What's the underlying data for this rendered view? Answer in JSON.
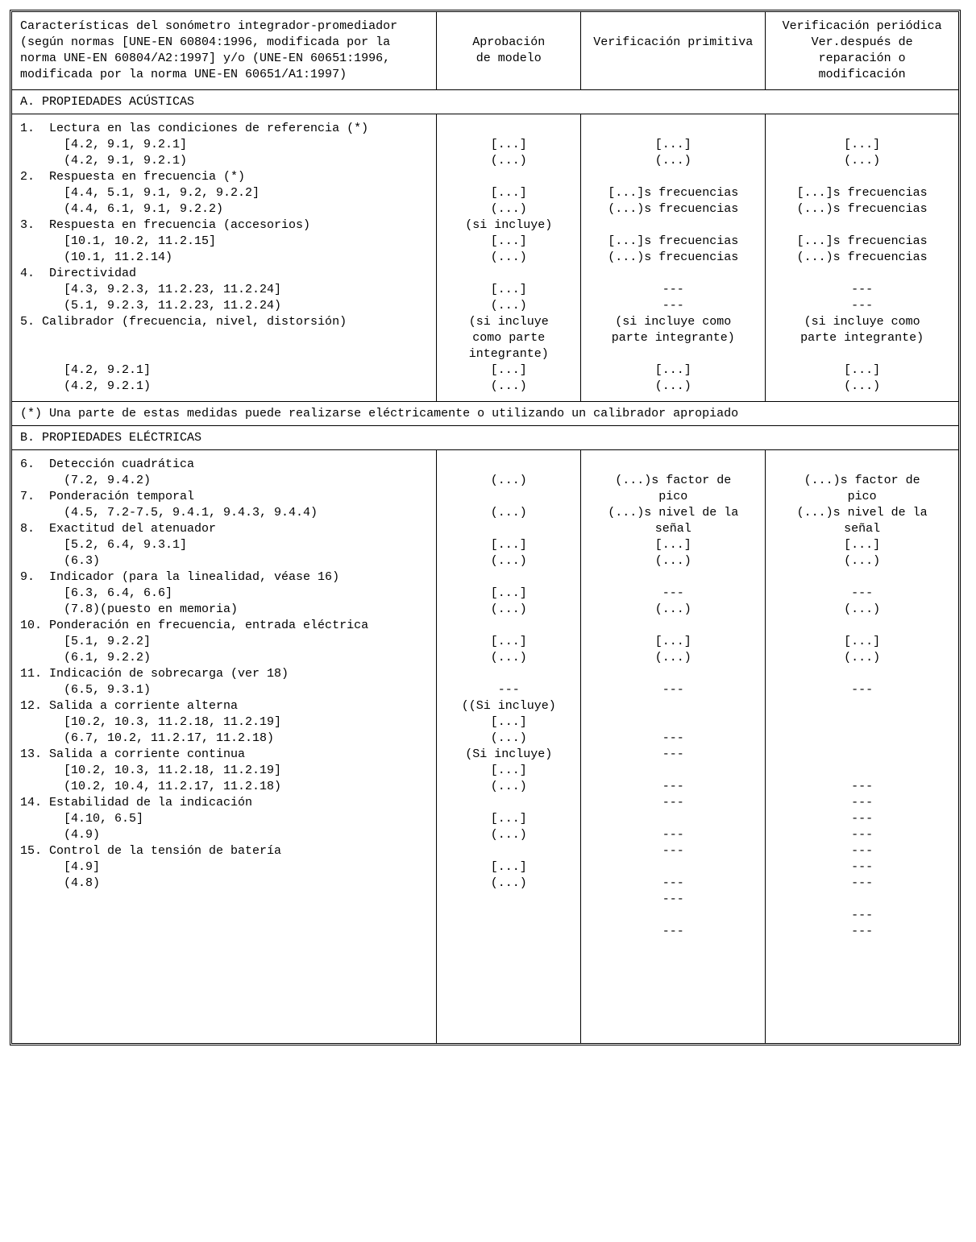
{
  "header": {
    "col1_l1": "Características del sonómetro integrador-promediador",
    "col1_l2": "(según normas [UNE-EN 60804:1996, modificada por la",
    "col1_l3": "norma UNE-EN 60804/A2:1997] y/o (UNE-EN 60651:1996,",
    "col1_l4": "modificada por la norma UNE-EN 60651/A1:1997)",
    "col2_l1": "Aprobación",
    "col2_l2": "de modelo",
    "col3_l1": "Verificación",
    "col3_l2": "primitiva",
    "col4_l1": "Verificación",
    "col4_l2": "periódica",
    "col4_l3": "Ver.después de",
    "col4_l4": "reparación o",
    "col4_l5": "modificación"
  },
  "sectionA_title": "A. PROPIEDADES ACÚSTICAS",
  "note_text": "(*) Una parte de estas medidas puede realizarse eléctricamente o utilizando un calibrador apropiado",
  "sectionB_title": "B. PROPIEDADES ELÉCTRICAS",
  "A": {
    "c1": [
      "1.  Lectura en las condiciones de referencia (*)",
      "      [4.2, 9.1, 9.2.1]",
      "      (4.2, 9.1, 9.2.1)",
      "2.  Respuesta en frecuencia (*)",
      "      [4.4, 5.1, 9.1, 9.2, 9.2.2]",
      "      (4.4, 6.1, 9.1, 9.2.2)",
      "3.  Respuesta en frecuencia (accesorios)",
      "      [10.1, 10.2, 11.2.15]",
      "      (10.1, 11.2.14)",
      "4.  Directividad",
      "      [4.3, 9.2.3, 11.2.23, 11.2.24]",
      "      (5.1, 9.2.3, 11.2.23, 11.2.24)",
      "5. Calibrador (frecuencia, nivel, distorsión)",
      "",
      "",
      "      [4.2, 9.2.1]",
      "      (4.2, 9.2.1)"
    ],
    "c2": [
      "",
      "[...]",
      "(...)",
      "",
      "[...]",
      "(...)",
      "(si incluye)",
      "[...]",
      "(...)",
      "",
      "[...]",
      "(...)",
      "(si incluye",
      "como parte",
      "integrante)",
      "[...]",
      "(...)"
    ],
    "c3": [
      "",
      "[...]",
      "(...)",
      "",
      "[...]s frecuencias",
      "(...)s frecuencias",
      "",
      "[...]s frecuencias",
      "(...)s frecuencias",
      "",
      "---",
      "---",
      "(si incluye como",
      "parte integrante)",
      "",
      "[...]",
      "(...)"
    ],
    "c4": [
      "",
      "[...]",
      "(...)",
      "",
      "[...]s frecuencias",
      "(...)s frecuencias",
      "",
      "[...]s frecuencias",
      "(...)s frecuencias",
      "",
      "---",
      "---",
      "(si incluye como",
      "parte integrante)",
      "",
      "[...]",
      "(...)"
    ]
  },
  "B": {
    "c1": [
      "6.  Detección cuadrática",
      "      (7.2, 9.4.2)",
      "7.  Ponderación temporal",
      "      (4.5, 7.2-7.5, 9.4.1, 9.4.3, 9.4.4)",
      "8.  Exactitud del atenuador",
      "      [5.2, 6.4, 9.3.1]",
      "      (6.3)",
      "9.  Indicador (para la linealidad, véase 16)",
      "      [6.3, 6.4, 6.6]",
      "      (7.8)(puesto en memoria)",
      "10. Ponderación en frecuencia, entrada eléctrica",
      "      [5.1, 9.2.2]",
      "      (6.1, 9.2.2)",
      "11. Indicación de sobrecarga (ver 18)",
      "      (6.5, 9.3.1)",
      "12. Salida a corriente alterna",
      "      [10.2, 10.3, 11.2.18, 11.2.19]",
      "      (6.7, 10.2, 11.2.17, 11.2.18)",
      "13. Salida a corriente continua",
      "      [10.2, 10.3, 11.2.18, 11.2.19]",
      "      (10.2, 10.4, 11.2.17, 11.2.18)",
      "14. Estabilidad de la indicación",
      "      [4.10, 6.5]",
      "      (4.9)",
      "15. Control de la tensión de batería",
      "      [4.9]",
      "      (4.8)",
      "",
      "",
      "",
      "",
      "",
      "",
      "",
      "",
      ""
    ],
    "c2": [
      "",
      "(...)",
      "",
      "(...)",
      "",
      "[...]",
      "(...)",
      "",
      "[...]",
      "(...)",
      "",
      "[...]",
      "(...)",
      "",
      "---",
      "((Si incluye)",
      "[...]",
      "(...)",
      "(Si incluye)",
      "[...]",
      "(...)",
      "",
      "[...]",
      "(...)",
      "",
      "[...]",
      "(...)",
      "",
      "",
      "",
      "",
      "",
      "",
      "",
      "",
      ""
    ],
    "c3": [
      "",
      "(...)s factor de",
      "pico",
      "(...)s nivel de la",
      "señal",
      "[...]",
      "(...)",
      "",
      "---",
      "(...)",
      "",
      "[...]",
      "(...)",
      "",
      "---",
      "",
      "",
      "---",
      "---",
      "",
      "---",
      "---",
      "",
      "---",
      "---",
      "",
      "---",
      "---",
      "",
      "---",
      "",
      "",
      "",
      "",
      "",
      ""
    ],
    "c4": [
      "",
      "(...)s factor de",
      "pico",
      "(...)s nivel de la",
      "señal",
      "[...]",
      "(...)",
      "",
      "---",
      "(...)",
      "",
      "[...]",
      "(...)",
      "",
      "---",
      "",
      "",
      "",
      "",
      "",
      "---",
      "---",
      "---",
      "---",
      "---",
      "---",
      "---",
      "",
      "---",
      "---",
      "",
      "",
      "",
      "",
      "",
      ""
    ]
  }
}
